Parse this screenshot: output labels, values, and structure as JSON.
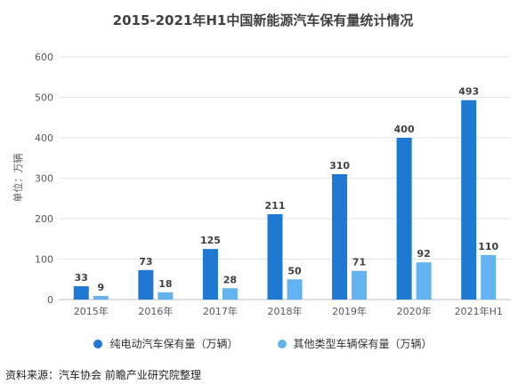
{
  "chart_data": {
    "type": "bar",
    "title": "2015-2021年H1中国新能源汽车保有量统计情况",
    "ylabel": "单位：万辆",
    "xlabel": "",
    "categories": [
      "2015年",
      "2016年",
      "2017年",
      "2018年",
      "2019年",
      "2020年",
      "2021年H1"
    ],
    "ylim": [
      0,
      600
    ],
    "yticks": [
      0,
      100,
      200,
      300,
      400,
      500,
      600
    ],
    "grid": true,
    "legend_position": "bottom",
    "series": [
      {
        "name": "纯电动汽车保有量（万辆）",
        "color": "#1f78d1",
        "values": [
          33,
          73,
          125,
          211,
          310,
          400,
          493
        ]
      },
      {
        "name": "其他类型车辆保有量（万辆）",
        "color": "#62b3f0",
        "values": [
          9,
          18,
          28,
          50,
          71,
          92,
          110
        ]
      }
    ]
  },
  "source": "资料来源：汽车协会 前瞻产业研究院整理"
}
